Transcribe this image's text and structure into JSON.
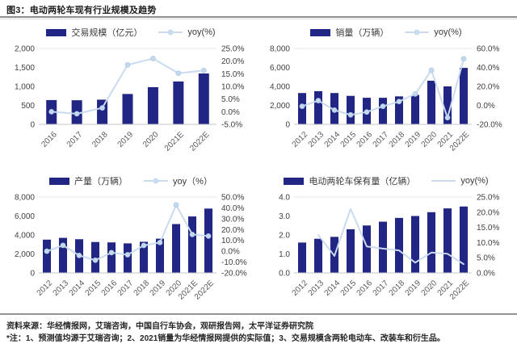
{
  "page": {
    "title": "图3：电动两轮车现有行业规模及趋势",
    "source": "资料来源：华经情报网，艾瑞咨询，中国自行车协会，观研报告网，太平洋证券研究院",
    "note": "*注：1、预测值均源于艾瑞咨询；2、2021销量为华经情报网提供的实际值；3、交易规模含两轮电动车、改装车和衍生品。"
  },
  "colors": {
    "bar": "#212584",
    "line": "#c9dbee",
    "marker": "#c4d8ed",
    "marker_edge": "#aecbe6",
    "axis_line": "#c6c6c6",
    "grid_top": "#e4e4e4",
    "tick_text": "#404040",
    "xlabel_text": "#595959"
  },
  "chart_data": [
    {
      "type": "bar+line",
      "position": "top-left",
      "bar_label": "交易规模（亿元）",
      "line_label": "yoy(%)",
      "categories": [
        "2016",
        "2017",
        "2018",
        "2019",
        "2020",
        "2021E",
        "2022E"
      ],
      "bar_values": [
        640,
        635,
        650,
        800,
        980,
        1130,
        1340
      ],
      "line_values": [
        0.0,
        -0.8,
        1.5,
        18.5,
        21.0,
        15.2,
        16.3
      ],
      "line_markers": true,
      "left_axis": {
        "min": 0,
        "max": 2000,
        "tick_labels": [
          "0",
          "500",
          "1,000",
          "1,500",
          "2,000"
        ]
      },
      "right_axis": {
        "min": -5,
        "max": 25,
        "tick_labels": [
          "-5.0%",
          "0.0%",
          "5.0%",
          "10.0%",
          "15.0%",
          "20.0%",
          "25.0%"
        ]
      }
    },
    {
      "type": "bar+line",
      "position": "top-right",
      "bar_label": "销量（万辆）",
      "line_label": "yoy(%)",
      "categories": [
        "2012",
        "2013",
        "2014",
        "2015",
        "2016",
        "2017",
        "2018",
        "2019",
        "2020",
        "2021",
        "2022E"
      ],
      "bar_values": [
        3300,
        3500,
        3300,
        3000,
        2800,
        2800,
        2950,
        3100,
        4600,
        4000,
        5950
      ],
      "line_values": [
        -1.0,
        5.0,
        -5.0,
        -10.0,
        -7.0,
        -1.0,
        4.0,
        12.0,
        37.0,
        -13.0,
        49.0
      ],
      "line_markers": true,
      "left_axis": {
        "min": 0,
        "max": 8000,
        "tick_labels": [
          "0",
          "2,000",
          "4,000",
          "6,000",
          "8,000"
        ]
      },
      "right_axis": {
        "min": -20,
        "max": 60,
        "tick_labels": [
          "-20.0%",
          "0.0%",
          "20.0%",
          "40.0%",
          "60.0%"
        ]
      }
    },
    {
      "type": "bar+line",
      "position": "bottom-left",
      "bar_label": "产量（万辆）",
      "line_label": "yoy（%）",
      "categories": [
        "2012",
        "2013",
        "2014",
        "2015",
        "2016",
        "2017",
        "2018",
        "2019",
        "2020",
        "2021E",
        "2022E"
      ],
      "bar_values": [
        3505,
        3695,
        3551,
        3257,
        3215,
        3113,
        3280,
        3610,
        5150,
        5950,
        6780
      ],
      "line_values": [
        0.0,
        5.4,
        -3.9,
        -8.3,
        -1.3,
        -3.2,
        5.3,
        8.0,
        42.7,
        15.5,
        14.0
      ],
      "line_markers": true,
      "left_axis": {
        "min": 0,
        "max": 8000,
        "tick_labels": [
          "0",
          "2,000",
          "4,000",
          "6,000",
          "8,000"
        ]
      },
      "right_axis": {
        "min": -20,
        "max": 50,
        "tick_labels": [
          "-20.0%",
          "-10.0%",
          "0.0%",
          "10.0%",
          "20.0%",
          "30.0%",
          "40.0%",
          "50.0%"
        ]
      }
    },
    {
      "type": "bar+line",
      "position": "bottom-right",
      "bar_label": "电动两轮车保有量（亿辆）",
      "line_label": "yoy(%)",
      "categories": [
        "2012",
        "2013",
        "2014",
        "2015",
        "2016",
        "2017",
        "2018",
        "2019",
        "2020",
        "2021",
        "2022E"
      ],
      "bar_values": [
        1.6,
        1.8,
        1.9,
        2.3,
        2.5,
        2.7,
        2.9,
        3.0,
        3.2,
        3.4,
        3.5
      ],
      "line_values": [
        null,
        12.5,
        5.6,
        21.1,
        8.7,
        8.0,
        7.4,
        3.4,
        6.7,
        6.3,
        2.9
      ],
      "line_markers": false,
      "left_axis": {
        "min": 0,
        "max": 4,
        "tick_labels": [
          "0.0",
          "1.0",
          "2.0",
          "3.0",
          "4.0"
        ]
      },
      "right_axis": {
        "min": 0,
        "max": 25,
        "tick_labels": [
          "0.0%",
          "5.0%",
          "10.0%",
          "15.0%",
          "20.0%",
          "25.0%"
        ]
      }
    }
  ]
}
